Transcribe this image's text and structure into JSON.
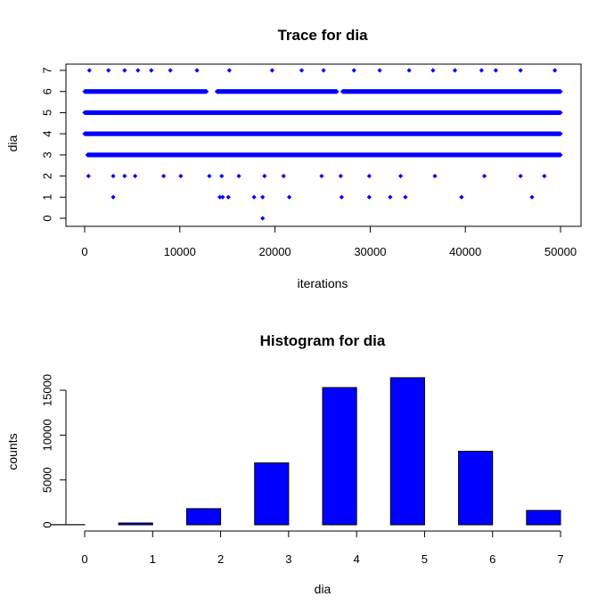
{
  "chart_data": [
    {
      "type": "scatter",
      "title": "Trace for  dia",
      "xlabel": "iterations",
      "ylabel": "dia",
      "xlim": [
        0,
        50000
      ],
      "ylim": [
        0,
        7
      ],
      "x_ticks": [
        0,
        10000,
        20000,
        30000,
        40000,
        50000
      ],
      "x_tick_labels": [
        "0",
        "10000",
        "20000",
        "30000",
        "40000",
        "50000"
      ],
      "y_ticks": [
        0,
        1,
        2,
        3,
        4,
        5,
        6,
        7
      ],
      "y_tick_labels": [
        "0",
        "1",
        "2",
        "3",
        "4",
        "5",
        "6",
        "7"
      ],
      "marker_color": "#0000FF",
      "series": [
        {
          "points": [
            {
              "x": 18700,
              "y": 0
            },
            {
              "x": 3000,
              "y": 1
            },
            {
              "x": 14200,
              "y": 1
            },
            {
              "x": 14500,
              "y": 1
            },
            {
              "x": 15100,
              "y": 1
            },
            {
              "x": 17800,
              "y": 1
            },
            {
              "x": 18700,
              "y": 1
            },
            {
              "x": 21500,
              "y": 1
            },
            {
              "x": 27000,
              "y": 1
            },
            {
              "x": 29900,
              "y": 1
            },
            {
              "x": 32100,
              "y": 1
            },
            {
              "x": 33700,
              "y": 1
            },
            {
              "x": 39600,
              "y": 1
            },
            {
              "x": 47000,
              "y": 1
            },
            {
              "x": 400,
              "y": 2
            },
            {
              "x": 3000,
              "y": 2
            },
            {
              "x": 4200,
              "y": 2
            },
            {
              "x": 5300,
              "y": 2
            },
            {
              "x": 8300,
              "y": 2
            },
            {
              "x": 10100,
              "y": 2
            },
            {
              "x": 13100,
              "y": 2
            },
            {
              "x": 14400,
              "y": 2
            },
            {
              "x": 16200,
              "y": 2
            },
            {
              "x": 18900,
              "y": 2
            },
            {
              "x": 20900,
              "y": 2
            },
            {
              "x": 24900,
              "y": 2
            },
            {
              "x": 26900,
              "y": 2
            },
            {
              "x": 29900,
              "y": 2
            },
            {
              "x": 33200,
              "y": 2
            },
            {
              "x": 36800,
              "y": 2
            },
            {
              "x": 42000,
              "y": 2
            },
            {
              "x": 45800,
              "y": 2
            },
            {
              "x": 48300,
              "y": 2
            },
            {
              "x": 500,
              "y": 7
            },
            {
              "x": 2500,
              "y": 7
            },
            {
              "x": 4200,
              "y": 7
            },
            {
              "x": 5600,
              "y": 7
            },
            {
              "x": 7000,
              "y": 7
            },
            {
              "x": 9000,
              "y": 7
            },
            {
              "x": 11800,
              "y": 7
            },
            {
              "x": 15200,
              "y": 7
            },
            {
              "x": 19700,
              "y": 7
            },
            {
              "x": 22800,
              "y": 7
            },
            {
              "x": 25100,
              "y": 7
            },
            {
              "x": 28300,
              "y": 7
            },
            {
              "x": 31000,
              "y": 7
            },
            {
              "x": 34100,
              "y": 7
            },
            {
              "x": 36600,
              "y": 7
            },
            {
              "x": 38900,
              "y": 7
            },
            {
              "x": 41700,
              "y": 7
            },
            {
              "x": 43200,
              "y": 7
            },
            {
              "x": 45800,
              "y": 7
            },
            {
              "x": 49400,
              "y": 7
            }
          ],
          "dense_bands": [
            {
              "y": 3,
              "ranges": [
                [
                  300,
                  50000
                ]
              ]
            },
            {
              "y": 4,
              "ranges": [
                [
                  0,
                  50000
                ]
              ]
            },
            {
              "y": 5,
              "ranges": [
                [
                  0,
                  50000
                ]
              ]
            },
            {
              "y": 6,
              "ranges": [
                [
                  0,
                  12800
                ],
                [
                  13900,
                  26500
                ],
                [
                  27100,
                  50000
                ]
              ]
            }
          ]
        }
      ]
    },
    {
      "type": "bar",
      "title": "Histogram for  dia",
      "xlabel": "dia",
      "ylabel": "counts",
      "ylim": [
        0,
        17000
      ],
      "x_ticks": [
        0,
        1,
        2,
        3,
        4,
        5,
        6,
        7
      ],
      "x_tick_labels": [
        "0",
        "1",
        "2",
        "3",
        "4",
        "5",
        "6",
        "7"
      ],
      "y_ticks": [
        0,
        5000,
        10000,
        15000
      ],
      "y_tick_labels": [
        "0",
        "5000",
        "10000",
        "15000"
      ],
      "bar_color": "#0000FF",
      "bar_width": 0.5,
      "bars": [
        {
          "x": 0,
          "value": 20
        },
        {
          "x": 1,
          "value": 200
        },
        {
          "x": 2,
          "value": 1800
        },
        {
          "x": 3,
          "value": 6900
        },
        {
          "x": 4,
          "value": 15300
        },
        {
          "x": 5,
          "value": 16400
        },
        {
          "x": 6,
          "value": 8200
        },
        {
          "x": 7,
          "value": 1600
        }
      ]
    }
  ]
}
